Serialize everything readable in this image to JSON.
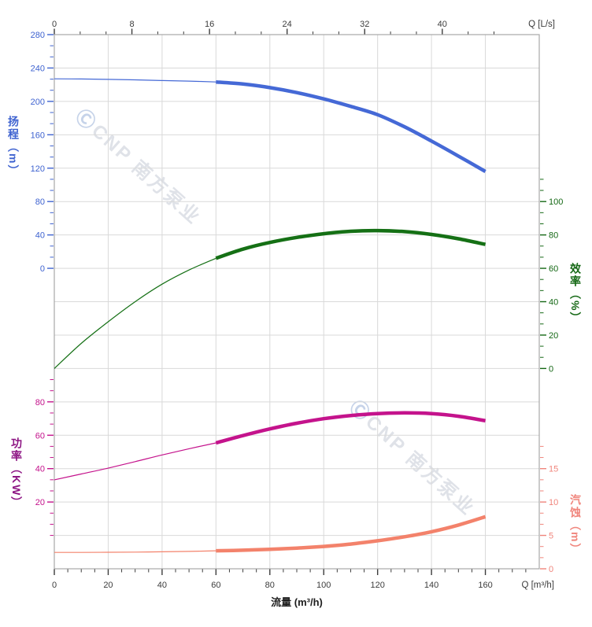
{
  "meta": {
    "description": "Pump performance curve chart (head, efficiency, power, NPSH vs flow)"
  },
  "watermark": {
    "logo_glyph": "Ⓒ",
    "text": "CNP 南方泵业"
  },
  "labels": {
    "top_unit": "Q [L/s]",
    "bottom_unit": "Q [m³/h]",
    "bottom_axis_title": "流量 (m³/h)",
    "head_axis_title": "扬程（m）",
    "eff_axis_title": "效率（%）",
    "power_axis_title": "功率（KW）",
    "npsh_axis_title": "汽蚀（m）"
  },
  "colors": {
    "grid": "#d9d9d9",
    "frame": "#a8a8a8",
    "axis_dark": "#3c3c3c",
    "head": "#3f63d0",
    "head_curve": "#4569d6",
    "eff": "#156815",
    "eff_curve": "#157015",
    "power_label": "#8d1583",
    "power": "#c4138c",
    "power_curve": "#c4138c",
    "npsh": "#f0857c",
    "npsh_curve": "#f3826b",
    "watermark_text": "#dfe2e8",
    "watermark_logo": "#c6d3e9"
  },
  "chart_data": {
    "type": "line",
    "title": "",
    "x_axis": {
      "bottom_label": "流量 (m³/h)",
      "bottom_unit": "Q [m³/h]",
      "top_unit": "Q [L/s]",
      "range_m3h": [
        0,
        180
      ],
      "bottom_majors": [
        0,
        20,
        40,
        60,
        80,
        100,
        120,
        140,
        160
      ],
      "bottom_minor_step": 5,
      "top_majors_ls": [
        0,
        8,
        16,
        24,
        32,
        40
      ],
      "grid": true
    },
    "y_axes": {
      "head": {
        "title": "扬程（m）",
        "side": "left",
        "majors": [
          280,
          240,
          200,
          160,
          120,
          80,
          40,
          0
        ],
        "row_of_max": 0,
        "units_per_row": 40,
        "minor_row_range": [
          0,
          7
        ]
      },
      "eff": {
        "title": "效率（%）",
        "side": "right",
        "majors": [
          100,
          80,
          60,
          40,
          20,
          0
        ],
        "row_of_max": 5,
        "units_per_row": 20,
        "minor_row_range": [
          4.3333,
          10
        ]
      },
      "power": {
        "title": "功率（KW）",
        "side": "left",
        "majors": [
          80,
          60,
          40,
          20
        ],
        "row_of_max": 11,
        "units_per_row": 20,
        "minor_row_range": [
          10.3333,
          15
        ]
      },
      "npsh": {
        "title": "汽蚀（m）",
        "side": "right",
        "majors": [
          15,
          10,
          5,
          0
        ],
        "row_of_max": 13,
        "units_per_row": 5,
        "minor_row_range": [
          12.3333,
          16
        ]
      }
    },
    "series": [
      {
        "name": "扬程 (head)",
        "axis": "head",
        "color_key": "head_curve",
        "thick_from": 60,
        "x": [
          0,
          10,
          20,
          30,
          40,
          50,
          60,
          70,
          80,
          90,
          100,
          110,
          120,
          130,
          140,
          150,
          160
        ],
        "values": [
          227,
          226.8,
          226.4,
          225.8,
          225,
          224.3,
          223.3,
          220.8,
          216.5,
          210.5,
          203,
          194,
          184,
          169.5,
          152.5,
          134.5,
          116
        ]
      },
      {
        "name": "效率 (efficiency)",
        "axis": "eff",
        "color_key": "eff_curve",
        "thick_from": 60,
        "x": [
          0,
          10,
          20,
          30,
          40,
          50,
          60,
          70,
          80,
          90,
          100,
          110,
          120,
          130,
          140,
          150,
          160
        ],
        "values": [
          0,
          15,
          28,
          40,
          50.5,
          59,
          66,
          71.5,
          75.5,
          78.5,
          80.7,
          82.2,
          82.6,
          82,
          80.3,
          77.7,
          74.3
        ]
      },
      {
        "name": "功率 (power)",
        "axis": "power",
        "color_key": "power_curve",
        "thick_from": 60,
        "x": [
          0,
          10,
          20,
          30,
          40,
          50,
          60,
          70,
          80,
          90,
          100,
          110,
          120,
          130,
          140,
          150,
          160
        ],
        "values": [
          33.3,
          36.8,
          40.3,
          44.2,
          48.2,
          51.9,
          55.4,
          59.8,
          63.8,
          67.2,
          69.9,
          71.8,
          73,
          73.4,
          73,
          71.4,
          68.7
        ]
      },
      {
        "name": "汽蚀 (NPSH)",
        "axis": "npsh",
        "color_key": "npsh_curve",
        "thick_from": 60,
        "x": [
          0,
          10,
          20,
          30,
          40,
          50,
          60,
          70,
          80,
          90,
          100,
          110,
          120,
          130,
          140,
          150,
          160
        ],
        "values": [
          2.45,
          2.45,
          2.47,
          2.5,
          2.55,
          2.6,
          2.7,
          2.78,
          2.92,
          3.1,
          3.35,
          3.7,
          4.2,
          4.8,
          5.55,
          6.55,
          7.8
        ]
      }
    ]
  }
}
